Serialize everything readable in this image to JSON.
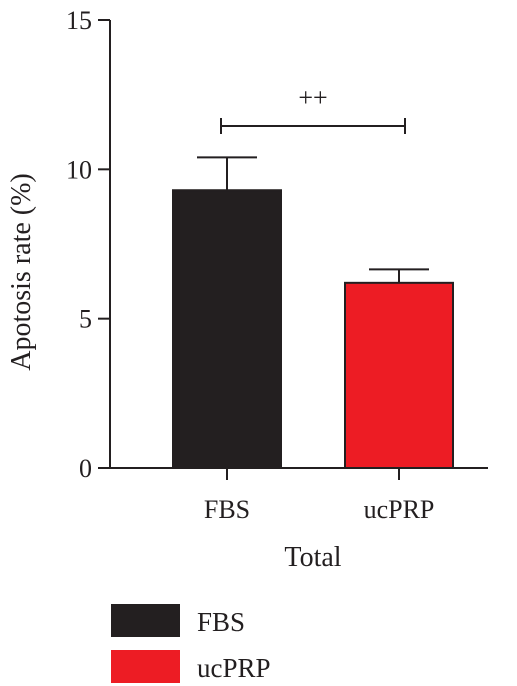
{
  "chart_data": {
    "type": "bar",
    "categories": [
      "FBS",
      "ucPRP"
    ],
    "values": [
      9.3,
      6.2
    ],
    "errors": [
      1.1,
      0.45
    ],
    "colors": [
      "#231f20",
      "#ed1c24"
    ],
    "xlabel": "Total",
    "ylabel": "Apotosis rate (%)",
    "ylim": [
      0,
      15
    ],
    "yticks": [
      0,
      5,
      10,
      15
    ],
    "ytick_labels": [
      "0",
      "5",
      "10",
      "15"
    ],
    "significance": {
      "label": "++",
      "between": [
        "FBS",
        "ucPRP"
      ]
    },
    "legend": {
      "placement": "bottom-left",
      "entries": [
        {
          "label": "FBS",
          "color": "#231f20"
        },
        {
          "label": "ucPRP",
          "color": "#ed1c24"
        }
      ]
    },
    "grid": false
  }
}
